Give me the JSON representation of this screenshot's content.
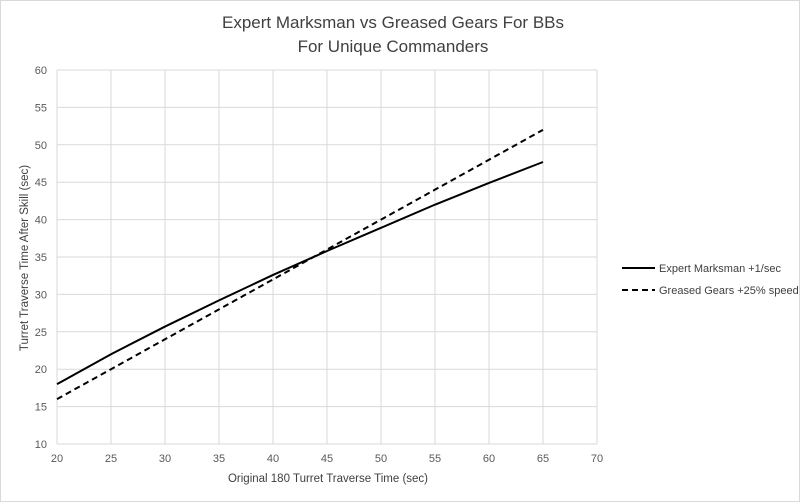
{
  "chart_data": {
    "type": "line",
    "title_lines": [
      "Expert Marksman vs Greased Gears For BBs",
      "For Unique Commanders"
    ],
    "xlabel": "Original 180 Turret Traverse Time (sec)",
    "ylabel": "Turret Traverse Time After Skill (sec)",
    "xlim": [
      20,
      70
    ],
    "ylim": [
      10,
      60
    ],
    "x_ticks": [
      20,
      25,
      30,
      35,
      40,
      45,
      50,
      55,
      60,
      65,
      70
    ],
    "y_ticks": [
      10,
      15,
      20,
      25,
      30,
      35,
      40,
      45,
      50,
      55,
      60
    ],
    "grid": true,
    "legend_position": "right",
    "series": [
      {
        "name": "Expert Marksman +1/sec",
        "style": "solid",
        "color": "#000000",
        "x": [
          20,
          25,
          30,
          35,
          40,
          45,
          50,
          55,
          60,
          65
        ],
        "y": [
          18.0,
          22.0,
          25.7,
          29.2,
          32.6,
          35.8,
          38.9,
          42.0,
          44.9,
          47.7
        ]
      },
      {
        "name": "Greased Gears +25% speed",
        "style": "dashed",
        "color": "#000000",
        "x": [
          20,
          25,
          30,
          35,
          40,
          45,
          50,
          55,
          60,
          65
        ],
        "y": [
          16.0,
          20.0,
          24.0,
          28.0,
          32.0,
          36.0,
          40.0,
          44.0,
          48.0,
          52.0
        ]
      }
    ]
  }
}
